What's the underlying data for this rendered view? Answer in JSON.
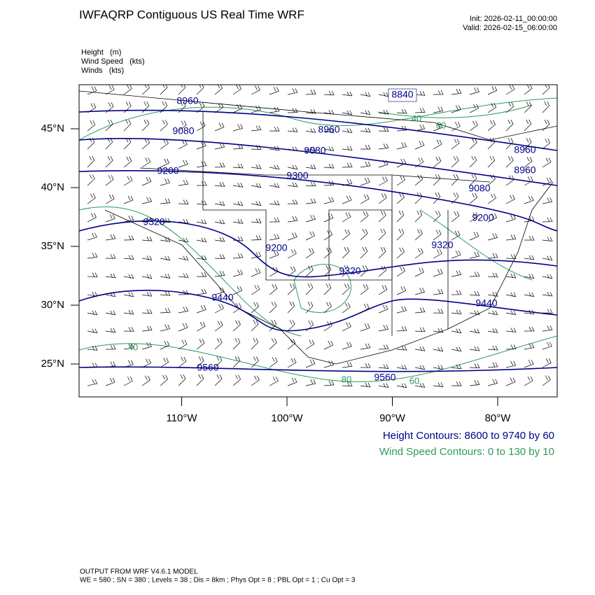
{
  "header": {
    "title": "IWFAQRP Contiguous US Real Time WRF",
    "init": "Init: 2026-02-11_00:00:00",
    "valid": "Valid: 2026-02-15_06:00:00",
    "fields": [
      "Height   (m)",
      "Wind Speed   (kts)",
      "Winds   (kts)"
    ]
  },
  "map": {
    "lat_ticks": [
      {
        "value": 45,
        "label": "45°N"
      },
      {
        "value": 40,
        "label": "40°N"
      },
      {
        "value": 35,
        "label": "35°N"
      },
      {
        "value": 30,
        "label": "30°N"
      },
      {
        "value": 25,
        "label": "25°N"
      }
    ],
    "lon_ticks": [
      {
        "value": -110,
        "label": "110°W"
      },
      {
        "value": -100,
        "label": "100°W"
      },
      {
        "value": -90,
        "label": "90°W"
      },
      {
        "value": -80,
        "label": "80°W"
      }
    ],
    "height_labels": [
      8840,
      8960,
      9080,
      8960,
      9080,
      9200,
      9300,
      9080,
      8960,
      8960,
      9320,
      9200,
      9200,
      9320,
      9320,
      9440,
      9440,
      9560,
      9560
    ],
    "speed_labels": [
      40,
      60,
      40,
      80,
      60
    ]
  },
  "legend": {
    "height": "Height Contours: 8600 to 9740 by 60",
    "speed": "Wind Speed Contours: 0 to 130 by 10"
  },
  "footer": {
    "line1": "OUTPUT FROM WRF V4.6.1 MODEL",
    "line2": "WE = 580 ; SN = 380 ; Levels = 38 ; Dis = 8km ; Phys Opt = 8 ; PBL Opt = 1 ; Cu Opt = 3"
  }
}
